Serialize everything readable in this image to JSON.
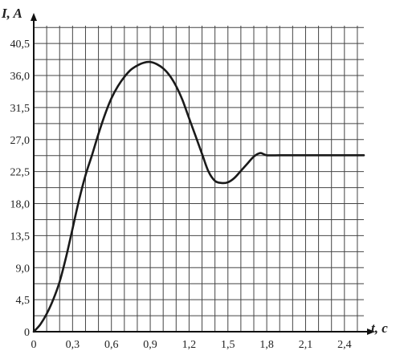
{
  "chart_data": {
    "type": "line",
    "xlabel": "t, c",
    "ylabel": "I, A",
    "xlim": [
      0,
      2.55
    ],
    "ylim": [
      0,
      43
    ],
    "grid": true,
    "x_ticks": [
      0,
      0.3,
      0.6,
      0.9,
      1.2,
      1.5,
      1.8,
      2.1,
      2.4
    ],
    "x_tick_labels": [
      "0",
      "0,3",
      "0,6",
      "0,9",
      "1,2",
      "1,5",
      "1,8",
      "2,1",
      "2,4"
    ],
    "y_ticks": [
      0,
      4.5,
      9.0,
      13.5,
      18.0,
      22.5,
      27.0,
      31.5,
      36.0,
      40.5
    ],
    "y_tick_labels": [
      "0",
      "4,5",
      "9,0",
      "13,5",
      "18,0",
      "22,5",
      "27,0",
      "31,5",
      "36,0",
      "40,5"
    ],
    "series": [
      {
        "x": [
          0,
          0.05,
          0.1,
          0.15,
          0.2,
          0.25,
          0.3,
          0.35,
          0.4,
          0.45,
          0.5,
          0.55,
          0.6,
          0.65,
          0.7,
          0.75,
          0.8,
          0.85,
          0.9,
          0.95,
          1.0,
          1.05,
          1.1,
          1.15,
          1.2,
          1.25,
          1.3,
          1.35,
          1.4,
          1.45,
          1.5,
          1.55,
          1.6,
          1.65,
          1.7,
          1.75,
          1.8,
          1.9,
          2.0,
          2.2,
          2.4,
          2.55
        ],
        "y": [
          0,
          1.0,
          2.5,
          4.5,
          7.0,
          10.5,
          14.5,
          18.5,
          22.0,
          24.8,
          27.8,
          30.5,
          32.8,
          34.5,
          35.8,
          36.8,
          37.4,
          37.8,
          37.9,
          37.6,
          37.0,
          36.0,
          34.5,
          32.5,
          30.0,
          27.5,
          25.0,
          22.5,
          21.2,
          20.9,
          21.0,
          21.6,
          22.6,
          23.6,
          24.6,
          25.1,
          24.8,
          24.8,
          24.8,
          24.8,
          24.8,
          24.8
        ]
      }
    ]
  }
}
